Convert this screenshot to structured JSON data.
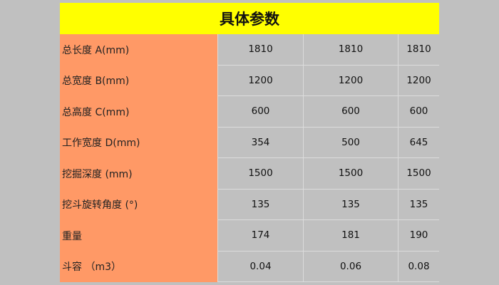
{
  "title": "具体参数",
  "rows": [
    {
      "label": "总长度 A(mm)",
      "values": [
        "1810",
        "1810",
        "1810"
      ]
    },
    {
      "label": "总宽度 B(mm)",
      "values": [
        "1200",
        "1200",
        "1200"
      ]
    },
    {
      "label": "总高度 C(mm)",
      "values": [
        "600",
        "600",
        "600"
      ]
    },
    {
      "label": "工作宽度 D(mm)",
      "values": [
        "354",
        "500",
        "645"
      ]
    },
    {
      "label": "挖掘深度 (mm)",
      "values": [
        "1500",
        "1500",
        "1500"
      ]
    },
    {
      "label": "挖斗旋转角度 (°)",
      "values": [
        "135",
        "135",
        "135"
      ]
    },
    {
      "label": "重量",
      "values": [
        "174",
        "181",
        "190"
      ]
    },
    {
      "label": "斗容 （m3）",
      "values": [
        "0.04",
        "0.06",
        "0.08"
      ]
    }
  ],
  "colors": {
    "header": "#ffff00",
    "label_column": "#ff9966",
    "cells": "#c0c0c0"
  }
}
